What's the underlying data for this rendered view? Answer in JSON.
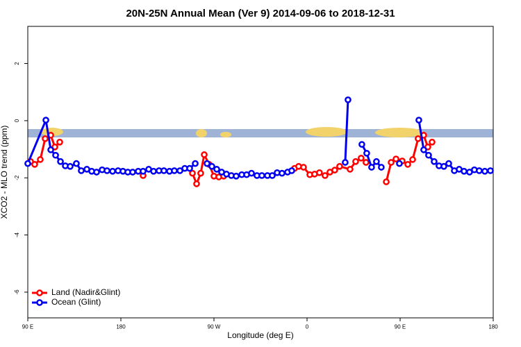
{
  "chart_data": {
    "type": "line",
    "title": "20N-25N Annual Mean (Ver 9)   2014-09-06 to 2018-12-31",
    "x_label": "Longitude (deg E)",
    "y_label": "XCO2 - MLO trend (ppm)",
    "xlim": [
      90,
      540
    ],
    "ylim": [
      -6.9,
      3.3
    ],
    "xticks": [
      {
        "value": 90,
        "label": "90 E"
      },
      180,
      {
        "value": 270,
        "label": "90 W"
      },
      {
        "value": 360,
        "label": "0"
      },
      {
        "value": 450,
        "label": "90 E"
      },
      {
        "value": 540,
        "label": "180"
      }
    ],
    "yticks": [
      2,
      0,
      -2,
      -4,
      -6
    ],
    "legend": "bottom-left",
    "series": [
      {
        "name": "Land (Nadir&Glint)",
        "color": "#ff0000",
        "x": [
          92.7,
          96.7,
          102.1,
          106.8,
          112.2,
          116.2,
          120.9,
          null,
          201.5,
          null,
          249.2,
          253.2,
          257.2,
          260.6,
          265.3,
          270.0,
          274.7,
          279.4,
          null,
          347.9,
          351.9,
          356.6,
          362.7,
          367.3,
          372.0,
          377.4,
          382.1,
          386.8,
          391.5,
          401.6,
          407.0,
          412.3,
          417.0,
          null,
          436.6,
          441.3,
          446.0,
          452.0,
          457.4,
          462.1,
          467.4,
          472.8,
          476.8,
          480.9
        ],
        "values": [
          -1.43,
          -1.53,
          -1.36,
          -0.63,
          -0.51,
          -0.92,
          -0.75,
          null,
          -1.92,
          null,
          -1.84,
          -2.21,
          -1.84,
          -1.19,
          -1.53,
          -1.94,
          -1.97,
          -1.94,
          null,
          -1.67,
          -1.6,
          -1.63,
          -1.89,
          -1.87,
          -1.82,
          -1.92,
          -1.8,
          -1.73,
          -1.6,
          -1.7,
          -1.43,
          -1.31,
          -1.46,
          null,
          -2.14,
          -1.46,
          -1.34,
          -1.41,
          -1.53,
          -1.36,
          -0.63,
          -0.51,
          -0.92,
          -0.75
        ]
      },
      {
        "name": "Ocean (Glint)",
        "color": "#0000ee",
        "x": [
          90,
          107.5,
          112.2,
          116.9,
          121.6,
          126.3,
          131.0,
          137.0,
          141.7,
          147.1,
          151.8,
          156.5,
          161.9,
          166.6,
          172.0,
          177.3,
          182.0,
          186.7,
          191.4,
          196.8,
          201.5,
          206.9,
          211.6,
          216.9,
          221.6,
          227.0,
          231.7,
          237.1,
          241.8,
          246.5,
          251.9,
          null,
          263.3,
          268.0,
          272.7,
          277.4,
          282.1,
          286.8,
          291.5,
          296.9,
          301.6,
          306.3,
          311.6,
          316.3,
          321.7,
          326.4,
          331.1,
          335.8,
          341.2,
          345.2,
          null,
          396.9,
          399.6,
          null,
          413.0,
          417.7,
          422.4,
          427.1,
          431.8,
          null,
          449.3,
          null,
          468.1,
          472.8,
          477.5,
          482.9,
          487.6,
          492.3,
          497.0,
          502.4,
          507.1,
          511.8,
          517.1,
          521.8,
          526.5,
          531.9,
          537.3
        ],
        "values": [
          -1.5,
          0.02,
          -1.02,
          -1.21,
          -1.43,
          -1.58,
          -1.6,
          -1.5,
          -1.75,
          -1.7,
          -1.77,
          -1.8,
          -1.72,
          -1.75,
          -1.77,
          -1.75,
          -1.77,
          -1.8,
          -1.8,
          -1.77,
          -1.77,
          -1.7,
          -1.77,
          -1.75,
          -1.75,
          -1.77,
          -1.75,
          -1.75,
          -1.67,
          -1.67,
          -1.5,
          null,
          -1.5,
          -1.6,
          -1.7,
          -1.8,
          -1.87,
          -1.92,
          -1.94,
          -1.89,
          -1.89,
          -1.84,
          -1.92,
          -1.92,
          -1.92,
          -1.92,
          -1.82,
          -1.84,
          -1.8,
          -1.75,
          null,
          -1.46,
          0.73,
          null,
          -0.83,
          -1.14,
          -1.63,
          -1.43,
          -1.63,
          null,
          -1.5,
          null,
          0.02,
          -1.02,
          -1.21,
          -1.43,
          -1.58,
          -1.6,
          -1.5,
          -1.75,
          -1.7,
          -1.77,
          -1.8,
          -1.72,
          -1.75,
          -1.77,
          -1.75
        ]
      }
    ]
  }
}
